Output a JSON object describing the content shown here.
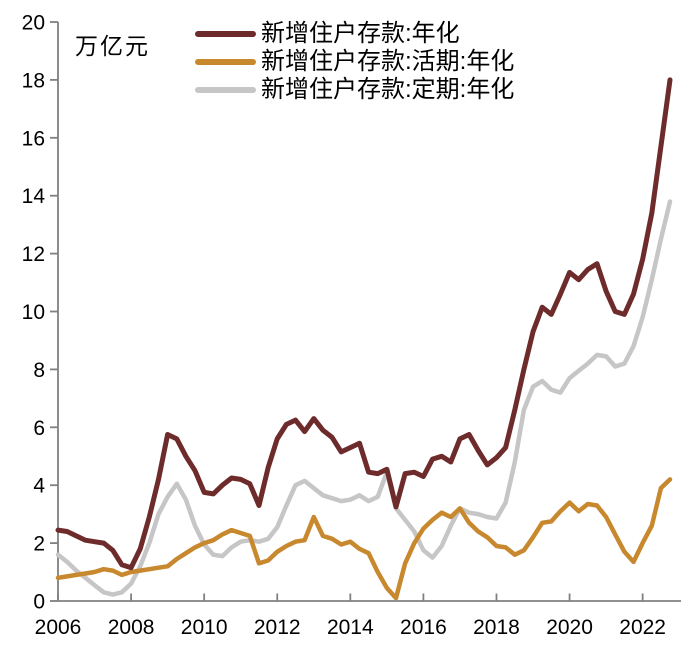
{
  "chart_data": {
    "type": "line",
    "title": "",
    "unit_label": "万亿元",
    "x_start": 2006.0,
    "x_step": 0.25,
    "x_tick_years": [
      2006,
      2008,
      2010,
      2012,
      2014,
      2016,
      2018,
      2020,
      2022
    ],
    "x_tick_labels": [
      "2006",
      "2008",
      "2010",
      "2012",
      "2014",
      "2016",
      "2018",
      "2020",
      "2022"
    ],
    "ylim": [
      0,
      20
    ],
    "y_ticks": [
      0,
      2,
      4,
      6,
      8,
      10,
      12,
      14,
      16,
      18,
      20
    ],
    "grid": false,
    "legend_position": "top-left-inside",
    "axis_color": "#808080",
    "tick_label_color": "#000000",
    "series": [
      {
        "name": "新增住户存款:年化",
        "color": "#6e2b2b",
        "line_width": 5,
        "values": [
          2.45,
          2.4,
          2.25,
          2.1,
          2.05,
          2.0,
          1.75,
          1.25,
          1.15,
          1.8,
          2.9,
          4.2,
          5.75,
          5.6,
          5.0,
          4.5,
          3.75,
          3.7,
          4.0,
          4.25,
          4.2,
          4.05,
          3.3,
          4.6,
          5.6,
          6.1,
          6.25,
          5.85,
          6.3,
          5.9,
          5.65,
          5.15,
          5.3,
          5.45,
          4.45,
          4.4,
          4.55,
          3.25,
          4.4,
          4.45,
          4.3,
          4.9,
          5.0,
          4.8,
          5.6,
          5.75,
          5.2,
          4.7,
          4.95,
          5.3,
          6.6,
          8.0,
          9.3,
          10.15,
          9.9,
          10.6,
          11.35,
          11.1,
          11.45,
          11.65,
          10.7,
          10.0,
          9.9,
          10.6,
          11.8,
          13.4,
          15.7,
          18.0
        ]
      },
      {
        "name": "新增住户存款:活期:年化",
        "color": "#c8882e",
        "line_width": 4.5,
        "values": [
          0.8,
          0.85,
          0.9,
          0.95,
          1.0,
          1.1,
          1.05,
          0.9,
          1.0,
          1.05,
          1.1,
          1.15,
          1.2,
          1.45,
          1.65,
          1.85,
          2.0,
          2.1,
          2.3,
          2.45,
          2.35,
          2.25,
          1.3,
          1.4,
          1.7,
          1.9,
          2.05,
          2.1,
          2.9,
          2.25,
          2.15,
          1.95,
          2.05,
          1.8,
          1.65,
          1.0,
          0.45,
          0.1,
          1.3,
          2.0,
          2.5,
          2.8,
          3.05,
          2.9,
          3.2,
          2.7,
          2.4,
          2.2,
          1.9,
          1.85,
          1.6,
          1.75,
          2.2,
          2.7,
          2.75,
          3.1,
          3.4,
          3.1,
          3.35,
          3.3,
          2.9,
          2.3,
          1.7,
          1.35,
          2.0,
          2.6,
          3.9,
          4.2
        ]
      },
      {
        "name": "新增住户存款:定期:年化",
        "color": "#c6c6c6",
        "line_width": 4.5,
        "values": [
          1.6,
          1.35,
          1.05,
          0.8,
          0.55,
          0.3,
          0.22,
          0.3,
          0.6,
          1.2,
          2.0,
          3.0,
          3.6,
          4.05,
          3.5,
          2.6,
          1.95,
          1.6,
          1.55,
          1.85,
          2.05,
          2.1,
          2.05,
          2.15,
          2.55,
          3.3,
          4.0,
          4.15,
          3.9,
          3.65,
          3.55,
          3.45,
          3.5,
          3.65,
          3.45,
          3.6,
          4.45,
          3.2,
          2.8,
          2.4,
          1.75,
          1.5,
          1.9,
          2.6,
          3.2,
          3.05,
          3.0,
          2.9,
          2.85,
          3.4,
          4.8,
          6.6,
          7.4,
          7.6,
          7.3,
          7.2,
          7.7,
          7.95,
          8.2,
          8.5,
          8.45,
          8.1,
          8.2,
          8.8,
          9.8,
          11.1,
          12.5,
          13.8
        ]
      }
    ]
  }
}
